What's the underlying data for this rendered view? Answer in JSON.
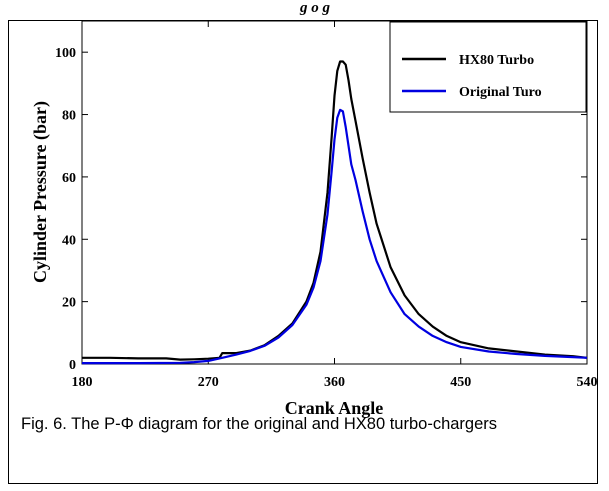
{
  "header_fragment": "g    o    g",
  "caption": "Fig. 6. The P-Φ diagram for the original and HX80 turbo-chargers",
  "chart_data": {
    "type": "line",
    "title": "",
    "xlabel": "Crank Angle",
    "ylabel": "Cylinder Pressure (bar)",
    "xlim": [
      180,
      540
    ],
    "ylim": [
      0,
      110
    ],
    "xticks": [
      180,
      270,
      360,
      450,
      540
    ],
    "yticks": [
      0,
      20,
      40,
      60,
      80,
      100
    ],
    "legend_position": "top-right",
    "grid": false,
    "series": [
      {
        "name": "HX80 Turbo",
        "color": "#000000",
        "x": [
          180,
          200,
          220,
          240,
          250,
          260,
          270,
          278,
          280,
          290,
          300,
          310,
          320,
          330,
          340,
          345,
          350,
          355,
          358,
          360,
          362,
          364,
          366,
          368,
          370,
          372,
          375,
          380,
          385,
          390,
          400,
          410,
          420,
          430,
          440,
          450,
          470,
          490,
          510,
          530,
          540
        ],
        "y": [
          2.0,
          2.0,
          1.8,
          1.8,
          1.4,
          1.5,
          1.7,
          2.0,
          3.5,
          3.5,
          4.3,
          6.0,
          9.0,
          13.0,
          20.0,
          26.0,
          36.0,
          55.0,
          73.0,
          86.0,
          94.0,
          97.0,
          97.0,
          96.0,
          91.0,
          85.0,
          78.0,
          66.0,
          55.0,
          45.0,
          31.0,
          22.0,
          16.0,
          12.0,
          9.0,
          7.0,
          5.0,
          4.0,
          3.0,
          2.5,
          2.0
        ]
      },
      {
        "name": "Original Turo",
        "color": "#0000e0",
        "x": [
          180,
          220,
          250,
          260,
          270,
          280,
          290,
          300,
          310,
          320,
          330,
          340,
          345,
          350,
          355,
          358,
          360,
          362,
          364,
          366,
          368,
          370,
          372,
          375,
          380,
          385,
          390,
          400,
          410,
          420,
          430,
          440,
          450,
          470,
          490,
          510,
          530,
          540
        ],
        "y": [
          0.3,
          0.3,
          0.4,
          0.6,
          1.0,
          2.0,
          3.0,
          4.2,
          5.8,
          8.5,
          12.5,
          19.0,
          24.5,
          33.0,
          48.0,
          62.0,
          72.0,
          79.0,
          81.5,
          81.0,
          76.0,
          70.0,
          64.0,
          59.0,
          49.0,
          40.0,
          33.0,
          23.0,
          16.0,
          12.0,
          9.0,
          7.0,
          5.5,
          4.0,
          3.2,
          2.6,
          2.2,
          2.0
        ]
      }
    ]
  }
}
